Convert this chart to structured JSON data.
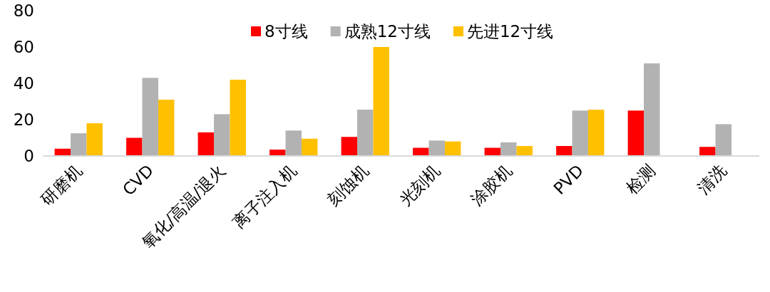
{
  "chart_data": {
    "type": "bar",
    "categories": [
      "研磨机",
      "CVD",
      "氧化/高温/退火",
      "离子注入机",
      "刻蚀机",
      "光刻机",
      "涂胶机",
      "PVD",
      "检测",
      "清洗"
    ],
    "series": [
      {
        "name": "8寸线",
        "color": "#ff0000",
        "values": [
          4,
          10,
          13,
          3.5,
          10.5,
          4.5,
          4.5,
          5.5,
          25,
          5
        ]
      },
      {
        "name": "成熟12寸线",
        "color": "#b2b2b2",
        "values": [
          12.5,
          43,
          23,
          14,
          25.5,
          8.5,
          7.5,
          25,
          51,
          17.5
        ]
      },
      {
        "name": "先进12寸线",
        "color": "#ffc000",
        "values": [
          18,
          31,
          42,
          9.5,
          60,
          8,
          5.5,
          25.5,
          null,
          null
        ]
      }
    ],
    "ylim": [
      0,
      80
    ],
    "yticks": [
      0,
      20,
      40,
      60,
      80
    ],
    "legend": "top",
    "grid": false
  }
}
